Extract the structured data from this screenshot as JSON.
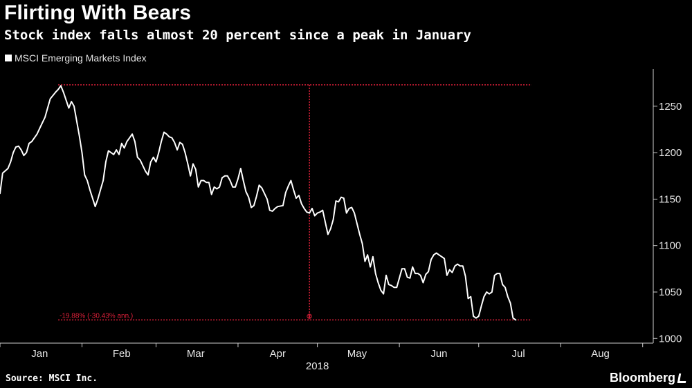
{
  "title": "Flirting With Bears",
  "subtitle": "Stock index falls almost 20 percent since a peak in January",
  "source": "Source: MSCI Inc.",
  "brand": "Bloomberg",
  "colors": {
    "background": "#000000",
    "line": "#ffffff",
    "annotation": "#e0203a",
    "text": "#e6e6e6"
  },
  "chart_data": {
    "type": "line",
    "legend_position": "top-left",
    "grid": false,
    "ylim": [
      995,
      1290
    ],
    "xlim": [
      0,
      247
    ],
    "yticks": [
      1000,
      1050,
      1100,
      1150,
      1200,
      1250
    ],
    "yticklabels": [
      "1000",
      "1050",
      "1100",
      "1150",
      "1200",
      "1250"
    ],
    "year_label": "2018",
    "month_labels": [
      {
        "label": "Jan",
        "day": 15
      },
      {
        "label": "Feb",
        "day": 46
      },
      {
        "label": "Mar",
        "day": 74
      },
      {
        "label": "Apr",
        "day": 105
      },
      {
        "label": "May",
        "day": 135
      },
      {
        "label": "Jun",
        "day": 166
      },
      {
        "label": "Jul",
        "day": 196
      },
      {
        "label": "Aug",
        "day": 227
      }
    ],
    "series": [
      {
        "name": "MSCI Emerging Markets Index",
        "points": [
          [
            0,
            1156
          ],
          [
            1,
            1178
          ],
          [
            3,
            1183
          ],
          [
            4,
            1190
          ],
          [
            5,
            1200
          ],
          [
            6,
            1206
          ],
          [
            7,
            1207
          ],
          [
            8,
            1203
          ],
          [
            9,
            1197
          ],
          [
            10,
            1200
          ],
          [
            11,
            1210
          ],
          [
            12,
            1212
          ],
          [
            14,
            1220
          ],
          [
            15,
            1226
          ],
          [
            16,
            1232
          ],
          [
            17,
            1238
          ],
          [
            18,
            1248
          ],
          [
            19,
            1258
          ],
          [
            21,
            1265
          ],
          [
            22,
            1268
          ],
          [
            23,
            1272
          ],
          [
            24,
            1265
          ],
          [
            26,
            1248
          ],
          [
            27,
            1255
          ],
          [
            28,
            1250
          ],
          [
            30,
            1218
          ],
          [
            31,
            1200
          ],
          [
            32,
            1176
          ],
          [
            33,
            1170
          ],
          [
            34,
            1160
          ],
          [
            36,
            1142
          ],
          [
            37,
            1150
          ],
          [
            38,
            1160
          ],
          [
            39,
            1170
          ],
          [
            40,
            1190
          ],
          [
            41,
            1202
          ],
          [
            42,
            1200
          ],
          [
            43,
            1198
          ],
          [
            44,
            1203
          ],
          [
            45,
            1198
          ],
          [
            46,
            1210
          ],
          [
            47,
            1205
          ],
          [
            48,
            1212
          ],
          [
            49,
            1216
          ],
          [
            50,
            1220
          ],
          [
            51,
            1212
          ],
          [
            52,
            1195
          ],
          [
            53,
            1192
          ],
          [
            54,
            1186
          ],
          [
            55,
            1180
          ],
          [
            56,
            1176
          ],
          [
            57,
            1190
          ],
          [
            58,
            1195
          ],
          [
            59,
            1190
          ],
          [
            60,
            1200
          ],
          [
            61,
            1212
          ],
          [
            62,
            1222
          ],
          [
            63,
            1220
          ],
          [
            64,
            1217
          ],
          [
            65,
            1216
          ],
          [
            66,
            1211
          ],
          [
            67,
            1203
          ],
          [
            68,
            1211
          ],
          [
            69,
            1209
          ],
          [
            70,
            1200
          ],
          [
            71,
            1188
          ],
          [
            72,
            1175
          ],
          [
            73,
            1188
          ],
          [
            74,
            1182
          ],
          [
            75,
            1163
          ],
          [
            76,
            1170
          ],
          [
            77,
            1170
          ],
          [
            78,
            1168
          ],
          [
            79,
            1168
          ],
          [
            80,
            1155
          ],
          [
            81,
            1163
          ],
          [
            82,
            1161
          ],
          [
            83,
            1163
          ],
          [
            84,
            1173
          ],
          [
            85,
            1175
          ],
          [
            86,
            1175
          ],
          [
            87,
            1170
          ],
          [
            88,
            1163
          ],
          [
            89,
            1163
          ],
          [
            90,
            1172
          ],
          [
            91,
            1183
          ],
          [
            92,
            1170
          ],
          [
            93,
            1158
          ],
          [
            94,
            1152
          ],
          [
            95,
            1141
          ],
          [
            96,
            1143
          ],
          [
            97,
            1153
          ],
          [
            98,
            1165
          ],
          [
            99,
            1162
          ],
          [
            101,
            1150
          ],
          [
            102,
            1138
          ],
          [
            103,
            1137
          ],
          [
            104,
            1140
          ],
          [
            105,
            1142
          ],
          [
            107,
            1143
          ],
          [
            108,
            1157
          ],
          [
            109,
            1164
          ],
          [
            110,
            1170
          ],
          [
            111,
            1160
          ],
          [
            112,
            1151
          ],
          [
            113,
            1154
          ],
          [
            114,
            1145
          ],
          [
            115,
            1140
          ],
          [
            116,
            1136
          ],
          [
            117,
            1135
          ],
          [
            118,
            1140
          ],
          [
            119,
            1132
          ],
          [
            120,
            1135
          ],
          [
            121,
            1136
          ],
          [
            122,
            1138
          ],
          [
            123,
            1125
          ],
          [
            124,
            1112
          ],
          [
            125,
            1118
          ],
          [
            126,
            1128
          ],
          [
            127,
            1148
          ],
          [
            128,
            1147
          ],
          [
            129,
            1152
          ],
          [
            130,
            1151
          ],
          [
            131,
            1135
          ],
          [
            132,
            1140
          ],
          [
            133,
            1141
          ],
          [
            134,
            1135
          ],
          [
            136,
            1112
          ],
          [
            137,
            1102
          ],
          [
            138,
            1083
          ],
          [
            139,
            1090
          ],
          [
            140,
            1077
          ],
          [
            141,
            1088
          ],
          [
            142,
            1070
          ],
          [
            143,
            1060
          ],
          [
            144,
            1052
          ],
          [
            145,
            1048
          ],
          [
            146,
            1068
          ],
          [
            147,
            1058
          ],
          [
            148,
            1057
          ],
          [
            149,
            1055
          ],
          [
            150,
            1055
          ],
          [
            151,
            1065
          ],
          [
            152,
            1075
          ],
          [
            153,
            1075
          ],
          [
            154,
            1066
          ],
          [
            155,
            1065
          ],
          [
            156,
            1077
          ],
          [
            157,
            1070
          ],
          [
            158,
            1070
          ],
          [
            159,
            1068
          ],
          [
            160,
            1060
          ],
          [
            161,
            1069
          ],
          [
            162,
            1072
          ],
          [
            163,
            1085
          ],
          [
            164,
            1090
          ],
          [
            165,
            1092
          ],
          [
            166,
            1090
          ],
          [
            167,
            1088
          ],
          [
            168,
            1086
          ],
          [
            169,
            1068
          ],
          [
            170,
            1074
          ],
          [
            171,
            1071
          ],
          [
            172,
            1078
          ],
          [
            173,
            1080
          ],
          [
            174,
            1078
          ],
          [
            175,
            1078
          ],
          [
            176,
            1067
          ],
          [
            177,
            1043
          ],
          [
            178,
            1045
          ],
          [
            179,
            1024
          ],
          [
            180,
            1022
          ],
          [
            181,
            1024
          ],
          [
            182,
            1035
          ],
          [
            183,
            1045
          ],
          [
            184,
            1050
          ],
          [
            185,
            1048
          ],
          [
            186,
            1050
          ],
          [
            187,
            1068
          ],
          [
            188,
            1070
          ],
          [
            189,
            1070
          ],
          [
            190,
            1058
          ],
          [
            191,
            1055
          ],
          [
            192,
            1045
          ],
          [
            193,
            1038
          ],
          [
            194,
            1022
          ],
          [
            195,
            1020
          ]
        ]
      }
    ],
    "annotation": {
      "label": "-19.88% (-30.43% ann.)",
      "marker": "⊗",
      "high_day": 23,
      "high_value": 1273,
      "low_value": 1020,
      "vertical_day": 117,
      "hline_start_day": 22,
      "hline_end_day": 201
    }
  }
}
